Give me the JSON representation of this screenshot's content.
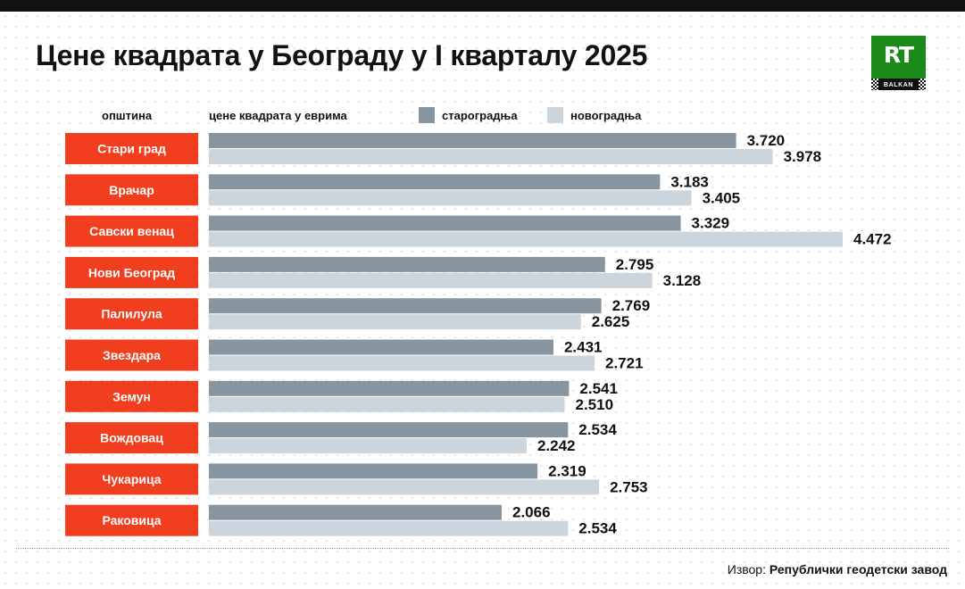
{
  "title": "Цене квадрата у Београду у I кварталу 2025",
  "logo": {
    "text": "RT",
    "subtext": "BALKAN"
  },
  "header": {
    "municipality_label": "општина",
    "price_label": "цене квадрата у еврима"
  },
  "colors": {
    "old": "#8795a1",
    "new": "#cdd5dc",
    "label_bg": "#f03e1e",
    "label_text": "#ffffff",
    "value_text": "#111111",
    "logo_green": "#1b8a1b"
  },
  "source": {
    "prefix": "Извор:",
    "name": "Републички геодетски завод"
  },
  "chart_data": {
    "type": "bar",
    "orientation": "horizontal",
    "title": "Цене квадрата у Београду у I кварталу 2025",
    "xlabel": "цене квадрата у еврима",
    "ylabel": "општина",
    "xlim": [
      0,
      4472
    ],
    "grid": false,
    "legend_position": "top",
    "categories": [
      "Стари град",
      "Врачар",
      "Савски венац",
      "Нови Београд",
      "Палилула",
      "Звездара",
      "Земун",
      "Вождовац",
      "Чукарица",
      "Раковица"
    ],
    "series": [
      {
        "name": "староградња",
        "values": [
          3720,
          3183,
          3329,
          2795,
          2769,
          2431,
          2541,
          2534,
          2319,
          2066
        ],
        "labels": [
          "3.720",
          "3.183",
          "3.329",
          "2.795",
          "2.769",
          "2.431",
          "2.541",
          "2.534",
          "2.319",
          "2.066"
        ]
      },
      {
        "name": "новоградња",
        "values": [
          3978,
          3405,
          4472,
          3128,
          2625,
          2721,
          2510,
          2242,
          2753,
          2534
        ],
        "labels": [
          "3.978",
          "3.405",
          "4.472",
          "3.128",
          "2.625",
          "2.721",
          "2.510",
          "2.242",
          "2.753",
          "2.534"
        ]
      }
    ]
  }
}
